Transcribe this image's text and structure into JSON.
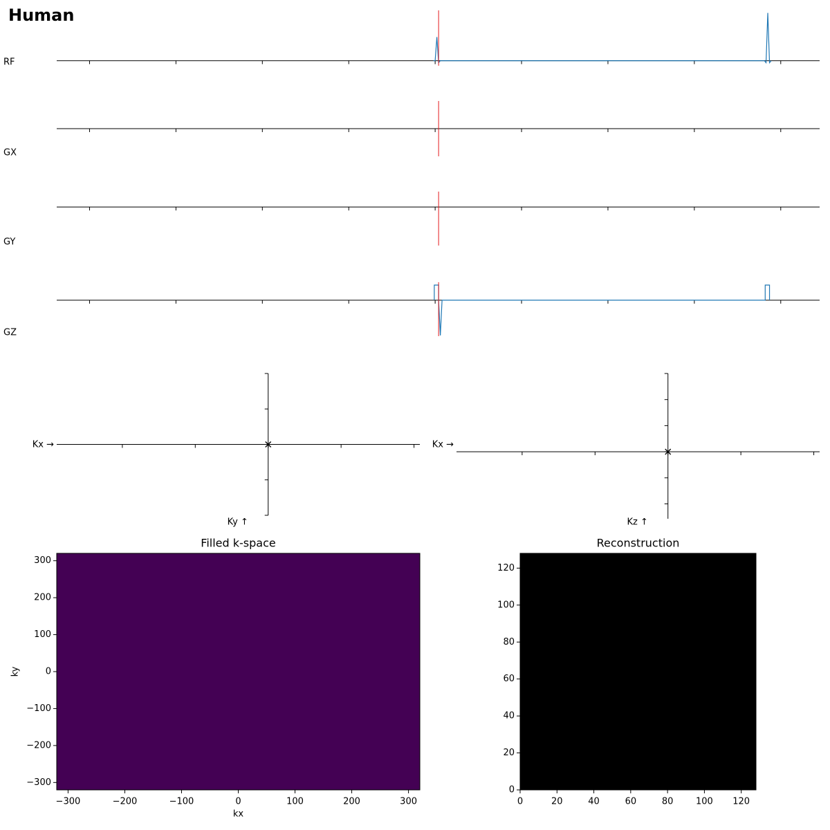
{
  "header": {
    "title": "Human"
  },
  "chart_data": [
    {
      "type": "line",
      "ylabel": "RF",
      "xlim": [
        -0.38,
        8.45
      ],
      "xticks": [
        0,
        1,
        2,
        3,
        4,
        5,
        6,
        7,
        8
      ],
      "ylim": [
        -0.1,
        1
      ],
      "marker_x": 4.04,
      "marker_color": "#e41a1c",
      "series": [
        {
          "color": "#1f77b4",
          "x": [
            3.98,
            4.0,
            4.02,
            4.04,
            4.06,
            7.81,
            7.83,
            7.85,
            7.87,
            7.89
          ],
          "values": [
            0,
            0,
            0.47,
            -0.04,
            0,
            0,
            -0.04,
            0.95,
            -0.04,
            0
          ]
        }
      ]
    },
    {
      "type": "line",
      "ylabel": "GX",
      "xlim": [
        -0.38,
        8.45
      ],
      "xticks": [
        0,
        1,
        2,
        3,
        4,
        5,
        6,
        7,
        8
      ],
      "ylim": [
        -1,
        1
      ],
      "marker_x": 4.04,
      "marker_color": "#e41a1c",
      "series": []
    },
    {
      "type": "line",
      "ylabel": "GY",
      "xlim": [
        -0.38,
        8.45
      ],
      "xticks": [
        0,
        1,
        2,
        3,
        4,
        5,
        6,
        7,
        8
      ],
      "ylim": [
        -1,
        0.4
      ],
      "marker_x": 4.04,
      "marker_color": "#e41a1c",
      "series": []
    },
    {
      "type": "line",
      "ylabel": "GZ",
      "xlim": [
        -0.38,
        8.45
      ],
      "xticks": [
        0,
        1,
        2,
        3,
        4,
        5,
        6,
        7,
        8
      ],
      "ylim": [
        -1,
        0.5
      ],
      "marker_x": 4.04,
      "marker_color": "#e41a1c",
      "series": [
        {
          "color": "#1f77b4",
          "x": [
            3.99,
            3.99,
            4.04,
            4.04,
            4.06,
            4.08,
            7.82,
            7.82,
            7.87,
            7.87
          ],
          "values": [
            0,
            0.42,
            0.42,
            0,
            -0.98,
            0,
            0,
            0.42,
            0.42,
            0
          ]
        }
      ]
    },
    {
      "type": "trajectory",
      "xlabel": "Kx →",
      "ylabel": "Ky ↑",
      "xlim": [
        -2.9,
        2.08
      ],
      "xticks": [
        -2,
        -1,
        0,
        1,
        2
      ],
      "ylim": [
        -2,
        2
      ],
      "yticks": [
        -2,
        -1,
        0,
        1,
        2
      ],
      "x": [
        0
      ],
      "values": [
        0
      ]
    },
    {
      "type": "trajectory",
      "xlabel": "Kx →",
      "ylabel": "Kz ↑",
      "xlim": [
        -2.9,
        2.08
      ],
      "xticks": [
        -2,
        -1,
        0,
        1,
        2
      ],
      "ylim": [
        -2.57,
        3
      ],
      "yticks": [
        -2,
        -1,
        0,
        1,
        2,
        3
      ],
      "x": [
        0
      ],
      "values": [
        0
      ]
    },
    {
      "type": "heatmap",
      "title": "Filled k-space",
      "xlabel": "kx",
      "ylabel": "ky",
      "color": "#440154",
      "xlim": [
        -320,
        320
      ],
      "ylim": [
        -320,
        320
      ],
      "xticks": [
        {
          "value": -300,
          "label": "−300"
        },
        {
          "value": -200,
          "label": "−200"
        },
        {
          "value": -100,
          "label": "−100"
        },
        0,
        100,
        200,
        300
      ],
      "yticks": [
        {
          "value": -300,
          "label": "−300"
        },
        {
          "value": -200,
          "label": "−200"
        },
        {
          "value": -100,
          "label": "−100"
        },
        0,
        100,
        200,
        300
      ]
    },
    {
      "type": "heatmap",
      "title": "Reconstruction",
      "color": "#000000",
      "xlim": [
        0,
        128
      ],
      "ylim": [
        0,
        128
      ],
      "xticks": [
        0,
        20,
        40,
        60,
        80,
        100,
        120
      ],
      "yticks": [
        0,
        20,
        40,
        60,
        80,
        100,
        120
      ]
    }
  ]
}
